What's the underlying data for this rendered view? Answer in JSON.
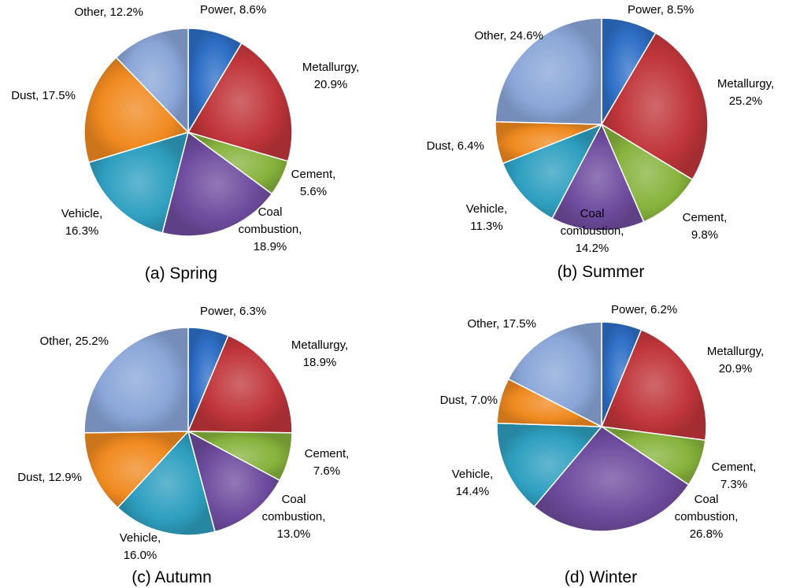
{
  "figure": {
    "colors": {
      "Power": "#2E6FC7",
      "Metallurgy": "#C0353A",
      "Cement": "#86B33C",
      "Coal combustion": "#6E4B9E",
      "Vehicle": "#2E9FC0",
      "Dust": "#F08A20",
      "Other": "#8AA6D8"
    }
  },
  "chart_data": [
    {
      "type": "pie",
      "caption": "(a) Spring",
      "slices": [
        {
          "name": "Power",
          "value": 8.6,
          "label_lines": [
            "Power, 8.6%"
          ]
        },
        {
          "name": "Metallurgy",
          "value": 20.9,
          "label_lines": [
            "Metallurgy,",
            "20.9%"
          ]
        },
        {
          "name": "Cement",
          "value": 5.6,
          "label_lines": [
            "Cement,",
            "5.6%"
          ]
        },
        {
          "name": "Coal combustion",
          "value": 18.9,
          "label_lines": [
            "Coal",
            "combustion,",
            "18.9%"
          ]
        },
        {
          "name": "Vehicle",
          "value": 16.3,
          "label_lines": [
            "Vehicle,",
            "16.3%"
          ]
        },
        {
          "name": "Dust",
          "value": 17.5,
          "label_lines": [
            "Dust, 17.5%"
          ]
        },
        {
          "name": "Other",
          "value": 12.2,
          "label_lines": [
            "Other, 12.2%"
          ]
        }
      ]
    },
    {
      "type": "pie",
      "caption": "(b) Summer",
      "slices": [
        {
          "name": "Power",
          "value": 8.5,
          "label_lines": [
            "Power, 8.5%"
          ]
        },
        {
          "name": "Metallurgy",
          "value": 25.2,
          "label_lines": [
            "Metallurgy,",
            "25.2%"
          ]
        },
        {
          "name": "Cement",
          "value": 9.8,
          "label_lines": [
            "Cement,",
            "9.8%"
          ]
        },
        {
          "name": "Coal combustion",
          "value": 14.2,
          "label_lines": [
            "Coal",
            "combustion,",
            "14.2%"
          ]
        },
        {
          "name": "Vehicle",
          "value": 11.3,
          "label_lines": [
            "Vehicle,",
            "11.3%"
          ]
        },
        {
          "name": "Dust",
          "value": 6.4,
          "label_lines": [
            "Dust, 6.4%"
          ]
        },
        {
          "name": "Other",
          "value": 24.6,
          "label_lines": [
            "Other, 24.6%"
          ]
        }
      ]
    },
    {
      "type": "pie",
      "caption": "(c) Autumn",
      "slices": [
        {
          "name": "Power",
          "value": 6.3,
          "label_lines": [
            "Power, 6.3%"
          ]
        },
        {
          "name": "Metallurgy",
          "value": 18.9,
          "label_lines": [
            "Metallurgy,",
            "18.9%"
          ]
        },
        {
          "name": "Cement",
          "value": 7.6,
          "label_lines": [
            "Cement,",
            "7.6%"
          ]
        },
        {
          "name": "Coal combustion",
          "value": 13.0,
          "label_lines": [
            "Coal",
            "combustion,",
            "13.0%"
          ]
        },
        {
          "name": "Vehicle",
          "value": 16.0,
          "label_lines": [
            "Vehicle,",
            "16.0%"
          ]
        },
        {
          "name": "Dust",
          "value": 12.9,
          "label_lines": [
            "Dust, 12.9%"
          ]
        },
        {
          "name": "Other",
          "value": 25.2,
          "label_lines": [
            "Other, 25.2%"
          ]
        }
      ]
    },
    {
      "type": "pie",
      "caption": "(d) Winter",
      "slices": [
        {
          "name": "Power",
          "value": 6.2,
          "label_lines": [
            "Power, 6.2%"
          ]
        },
        {
          "name": "Metallurgy",
          "value": 20.9,
          "label_lines": [
            "Metallurgy,",
            "20.9%"
          ]
        },
        {
          "name": "Cement",
          "value": 7.3,
          "label_lines": [
            "Cement,",
            "7.3%"
          ]
        },
        {
          "name": "Coal combustion",
          "value": 26.8,
          "label_lines": [
            "Coal",
            "combustion,",
            "26.8%"
          ]
        },
        {
          "name": "Vehicle",
          "value": 14.4,
          "label_lines": [
            "Vehicle,",
            "14.4%"
          ]
        },
        {
          "name": "Dust",
          "value": 7.0,
          "label_lines": [
            "Dust, 7.0%"
          ]
        },
        {
          "name": "Other",
          "value": 17.5,
          "label_lines": [
            "Other, 17.5%"
          ]
        }
      ]
    }
  ]
}
